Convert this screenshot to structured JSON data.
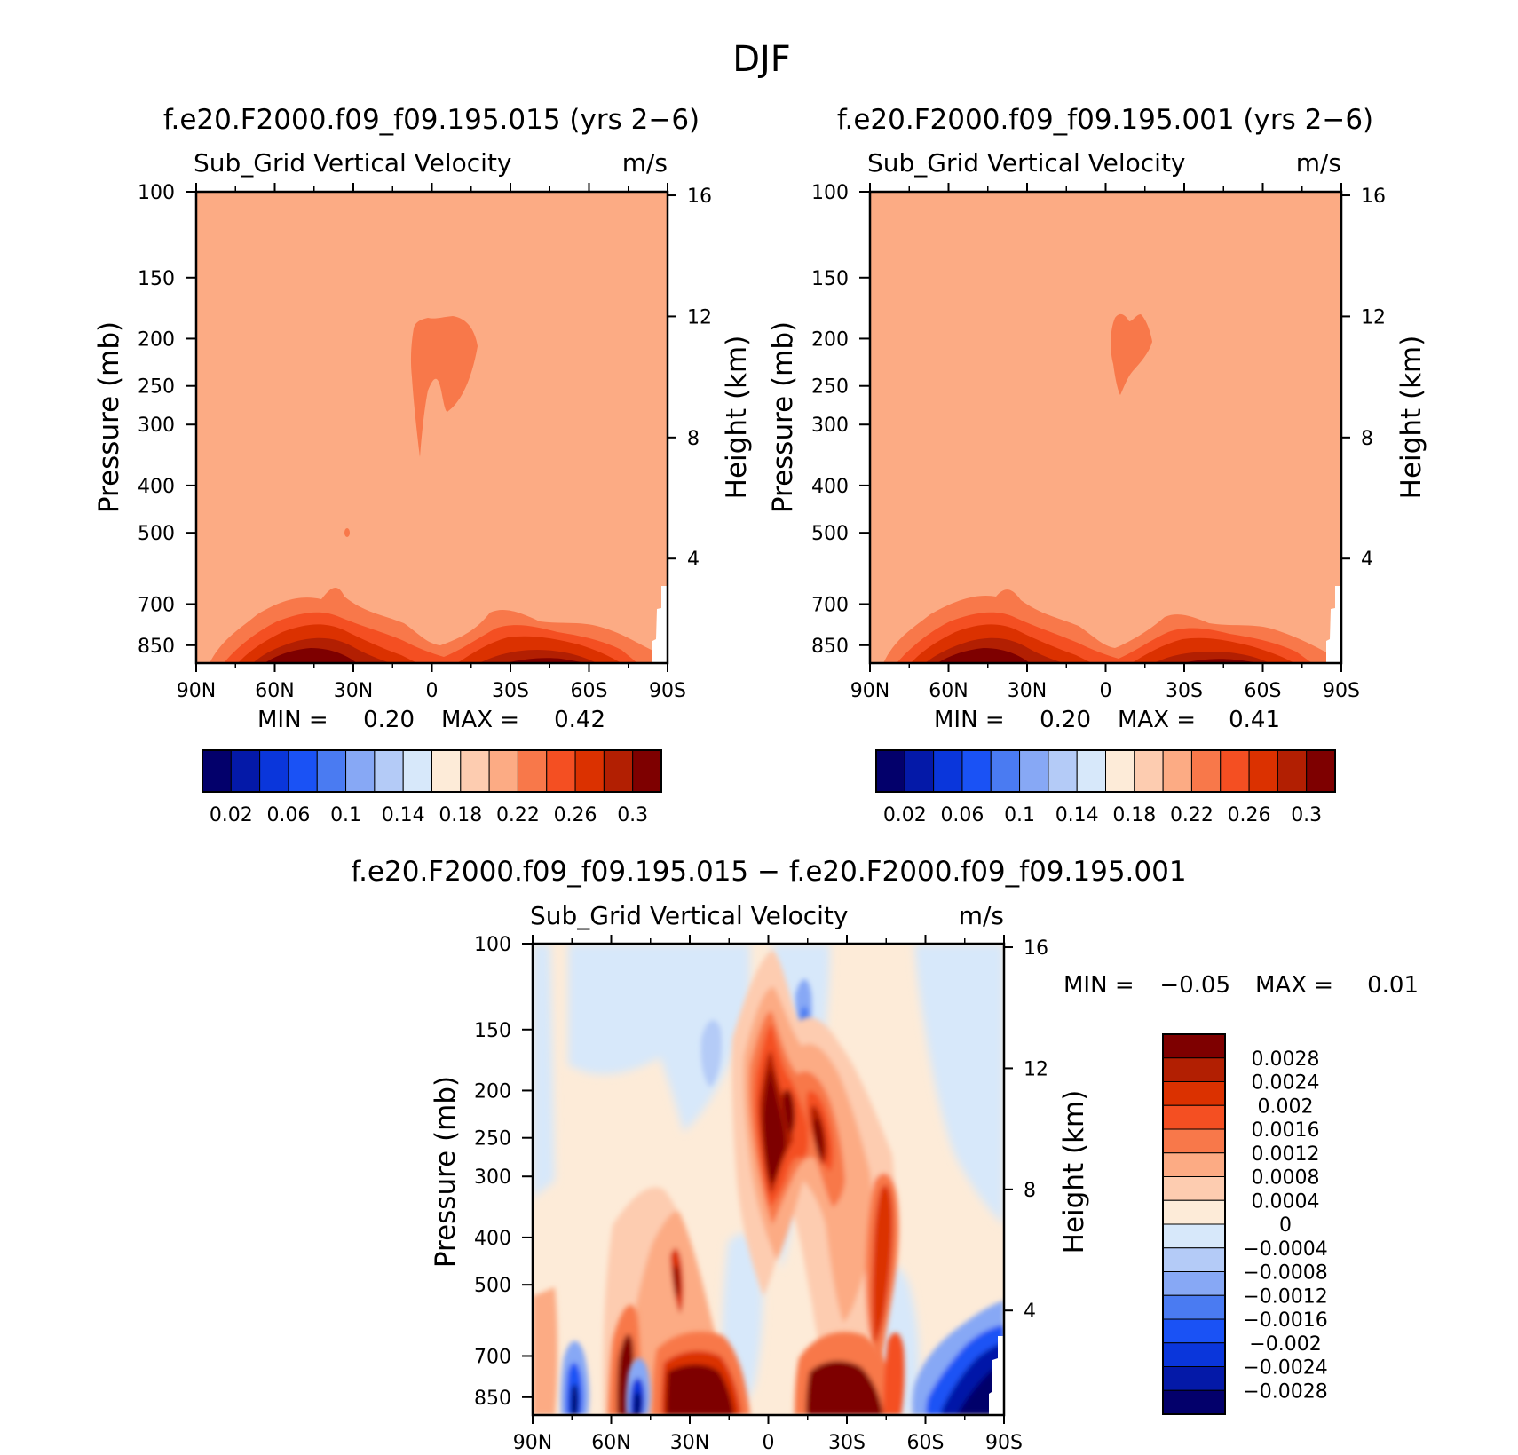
{
  "figure": {
    "title": "DJF"
  },
  "chart_data": [
    {
      "type": "heatmap",
      "id": "panel-1",
      "case_title": "f.e20.F2000.f09_f09.195.015 (yrs 2−6)",
      "variable": "Sub_Grid Vertical Velocity",
      "units": "m/s",
      "ylabel": "Pressure (mb)",
      "ylabel_right": "Height (km)",
      "x_ticks": [
        "90N",
        "60N",
        "30N",
        "0",
        "30S",
        "60S",
        "90S"
      ],
      "y_ticks": [
        "100",
        "150",
        "200",
        "250",
        "300",
        "400",
        "500",
        "700",
        "850"
      ],
      "y_ticks_right": [
        "16",
        "12",
        "8",
        "4"
      ],
      "xlim": [
        90,
        -90
      ],
      "ylim_mb": [
        100,
        925
      ],
      "y_scale": "log",
      "background_value": 0.2,
      "min_label": "MIN =",
      "min_value": "0.20",
      "max_label": "MAX =",
      "max_value": "0.42",
      "colorbar": {
        "labels": [
          "0.02",
          "0.06",
          "0.1",
          "0.14",
          "0.18",
          "0.22",
          "0.26",
          "0.3"
        ],
        "levels": [
          0.02,
          0.04,
          0.06,
          0.08,
          0.1,
          0.12,
          0.14,
          0.16,
          0.18,
          0.2,
          0.22,
          0.24,
          0.26,
          0.28,
          0.3
        ],
        "colors": [
          "#03006b",
          "#0419a8",
          "#0a36db",
          "#1a52f5",
          "#4a7bf2",
          "#87a8f5",
          "#b4cbf7",
          "#d7e8fa",
          "#fdebd8",
          "#fdccb0",
          "#fcab84",
          "#f8784a",
          "#f44f22",
          "#db3100",
          "#b21f02",
          "#7e0000"
        ]
      },
      "features": [
        {
          "kind": "upper-maximum",
          "lat": 18,
          "p": 200,
          "value": 0.21
        },
        {
          "kind": "low-level-maximum",
          "lat": 40,
          "p": 900,
          "value": 0.3
        },
        {
          "kind": "low-level-maximum",
          "lat": -40,
          "p": 900,
          "value": 0.28
        }
      ]
    },
    {
      "type": "heatmap",
      "id": "panel-2",
      "case_title": "f.e20.F2000.f09_f09.195.001 (yrs 2−6)",
      "variable": "Sub_Grid Vertical Velocity",
      "units": "m/s",
      "ylabel": "Pressure (mb)",
      "ylabel_right": "Height (km)",
      "x_ticks": [
        "90N",
        "60N",
        "30N",
        "0",
        "30S",
        "60S",
        "90S"
      ],
      "y_ticks": [
        "100",
        "150",
        "200",
        "250",
        "300",
        "400",
        "500",
        "700",
        "850"
      ],
      "y_ticks_right": [
        "16",
        "12",
        "8",
        "4"
      ],
      "xlim": [
        90,
        -90
      ],
      "ylim_mb": [
        100,
        925
      ],
      "y_scale": "log",
      "background_value": 0.2,
      "min_label": "MIN =",
      "min_value": "0.20",
      "max_label": "MAX =",
      "max_value": "0.41",
      "colorbar": {
        "labels": [
          "0.02",
          "0.06",
          "0.1",
          "0.14",
          "0.18",
          "0.22",
          "0.26",
          "0.3"
        ],
        "levels": [
          0.02,
          0.04,
          0.06,
          0.08,
          0.1,
          0.12,
          0.14,
          0.16,
          0.18,
          0.2,
          0.22,
          0.24,
          0.26,
          0.28,
          0.3
        ],
        "colors": [
          "#03006b",
          "#0419a8",
          "#0a36db",
          "#1a52f5",
          "#4a7bf2",
          "#87a8f5",
          "#b4cbf7",
          "#d7e8fa",
          "#fdebd8",
          "#fdccb0",
          "#fcab84",
          "#f8784a",
          "#f44f22",
          "#db3100",
          "#b21f02",
          "#7e0000"
        ]
      },
      "features": [
        {
          "kind": "upper-maximum",
          "lat": -10,
          "p": 210,
          "value": 0.21
        },
        {
          "kind": "low-level-maximum",
          "lat": 40,
          "p": 900,
          "value": 0.3
        },
        {
          "kind": "low-level-maximum",
          "lat": -40,
          "p": 900,
          "value": 0.28
        }
      ]
    },
    {
      "type": "heatmap",
      "id": "panel-diff",
      "case_title": "f.e20.F2000.f09_f09.195.015 − f.e20.F2000.f09_f09.195.001",
      "variable": "Sub_Grid Vertical Velocity",
      "units": "m/s",
      "ylabel": "Pressure (mb)",
      "ylabel_right": "Height (km)",
      "x_ticks": [
        "90N",
        "60N",
        "30N",
        "0",
        "30S",
        "60S",
        "90S"
      ],
      "y_ticks": [
        "100",
        "150",
        "200",
        "250",
        "300",
        "400",
        "500",
        "700",
        "850"
      ],
      "y_ticks_right": [
        "16",
        "12",
        "8",
        "4"
      ],
      "xlim": [
        90,
        -90
      ],
      "ylim_mb": [
        100,
        925
      ],
      "y_scale": "log",
      "min_label": "MIN =",
      "min_value": "−0.05",
      "max_label": "MAX =",
      "max_value": "0.01",
      "colorbar": {
        "labels": [
          "0.0028",
          "0.0024",
          "0.002",
          "0.0016",
          "0.0012",
          "0.0008",
          "0.0004",
          "0",
          "−0.0004",
          "−0.0008",
          "−0.0012",
          "−0.0016",
          "−0.002",
          "−0.0024",
          "−0.0028"
        ],
        "colors_top_to_bottom": [
          "#7e0000",
          "#b21f02",
          "#db3100",
          "#f44f22",
          "#f8784a",
          "#fcab84",
          "#fdccb0",
          "#fdebd8",
          "#d7e8fa",
          "#b4cbf7",
          "#87a8f5",
          "#4a7bf2",
          "#1a52f5",
          "#0a36db",
          "#0419a8",
          "#03006b"
        ]
      },
      "features": [
        {
          "kind": "positive-column",
          "lat": 3,
          "p_top": 160,
          "p_bottom": 550,
          "value": 0.003
        },
        {
          "kind": "positive-column",
          "lat": -17,
          "p_top": 190,
          "p_bottom": 420,
          "value": 0.0024
        },
        {
          "kind": "positive-column",
          "lat": -45,
          "p_top": 300,
          "p_bottom": 700,
          "value": 0.002
        },
        {
          "kind": "positive-column",
          "lat": 33,
          "p_top": 420,
          "p_bottom": 650,
          "value": 0.003
        },
        {
          "kind": "low-level-positive",
          "lat": 25,
          "p": 850,
          "value": 0.003
        },
        {
          "kind": "low-level-positive",
          "lat": -35,
          "p": 850,
          "value": 0.003
        },
        {
          "kind": "low-level-negative",
          "lat": 70,
          "p": 870,
          "value": -0.0028
        },
        {
          "kind": "low-level-negative",
          "lat": 50,
          "p": 870,
          "value": -0.0028
        },
        {
          "kind": "low-level-negative",
          "lat": -75,
          "p": 820,
          "value": -0.0028
        },
        {
          "kind": "upper-negative",
          "lat": -12,
          "p": 170,
          "value": -0.0012
        },
        {
          "kind": "upper-negative",
          "lat": 18,
          "p": 200,
          "value": -0.0008
        }
      ]
    }
  ]
}
